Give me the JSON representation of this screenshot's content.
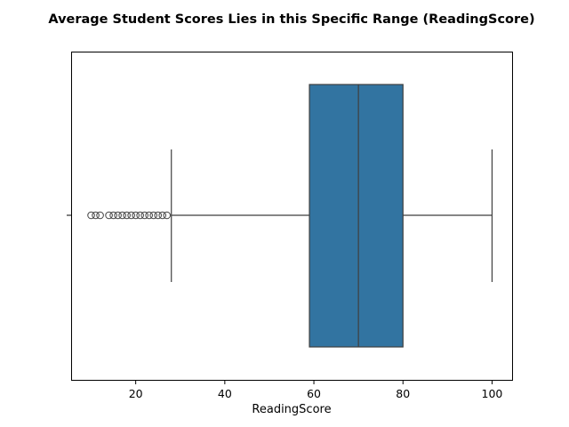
{
  "chart_data": {
    "type": "box",
    "title": "Average Student Scores Lies in this Specific Range (ReadingScore)",
    "xlabel": "ReadingScore",
    "ylabel": "",
    "xlim": [
      5.5,
      104.5
    ],
    "xticks": [
      20,
      40,
      60,
      80,
      100
    ],
    "grid": false,
    "box": {
      "whisker_low": 28,
      "q1": 59,
      "median": 70,
      "q3": 80,
      "whisker_high": 100,
      "outliers": [
        10,
        11,
        12,
        14,
        15,
        16,
        17,
        18,
        19,
        20,
        21,
        22,
        23,
        24,
        25,
        26,
        27
      ],
      "color": "#3274a1",
      "line_color": "#3f3f3f"
    }
  }
}
